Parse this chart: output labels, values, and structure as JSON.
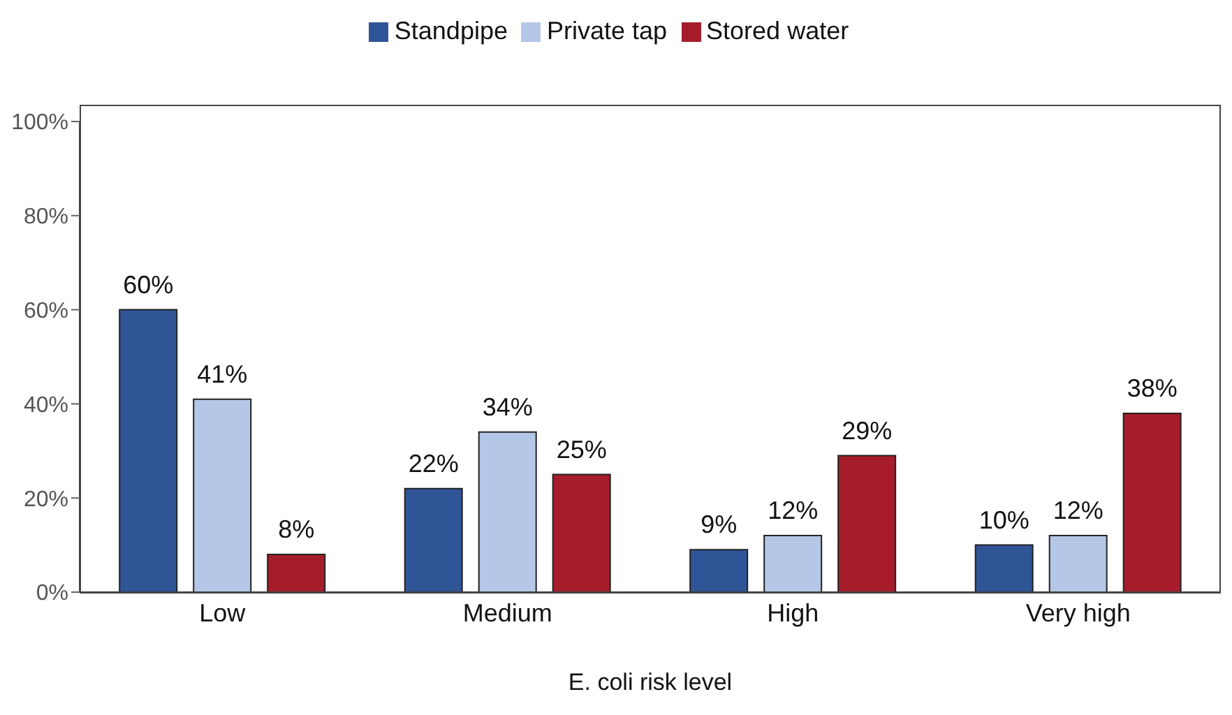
{
  "chart_data": {
    "type": "bar",
    "xlabel": "E. coli risk level",
    "categories": [
      "Low",
      "Medium",
      "High",
      "Very high"
    ],
    "series": [
      {
        "name": "Standpipe",
        "color": "#2f5597",
        "values": [
          60,
          22,
          9,
          10
        ],
        "value_labels": [
          "60%",
          "22%",
          "9%",
          "10%"
        ]
      },
      {
        "name": "Private tap",
        "color": "#b4c7e7",
        "values": [
          41,
          34,
          12,
          12
        ],
        "value_labels": [
          "41%",
          "34%",
          "12%",
          "12%"
        ]
      },
      {
        "name": "Stored water",
        "color": "#a61c2b",
        "values": [
          8,
          25,
          29,
          38
        ],
        "value_labels": [
          "8%",
          "25%",
          "29%",
          "38%"
        ]
      }
    ],
    "ylim": [
      0,
      100
    ],
    "yticks": [
      {
        "value": 0,
        "label": "0%"
      },
      {
        "value": 20,
        "label": "20%"
      },
      {
        "value": 40,
        "label": "40%"
      },
      {
        "value": 60,
        "label": "60%"
      },
      {
        "value": 80,
        "label": "80%"
      },
      {
        "value": 100,
        "label": "100%"
      }
    ],
    "grid": false,
    "legend": "top"
  }
}
